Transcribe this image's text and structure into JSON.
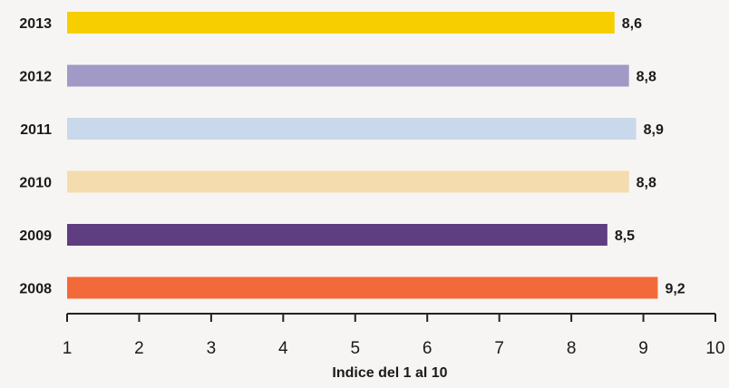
{
  "chart_data": {
    "type": "bar",
    "orientation": "horizontal",
    "categories": [
      "2013",
      "2012",
      "2011",
      "2010",
      "2009",
      "2008"
    ],
    "values": [
      8.6,
      8.8,
      8.9,
      8.8,
      8.5,
      9.2
    ],
    "value_labels": [
      "8,6",
      "8,8",
      "8,9",
      "8,8",
      "8,5",
      "9,2"
    ],
    "colors": [
      "#f7cf00",
      "#a19ac7",
      "#c9d8ea",
      "#f5dcae",
      "#5e3d80",
      "#f26a3a"
    ],
    "xlabel": "Indice del 1 al 10",
    "ylabel": "",
    "xlim": [
      1,
      10
    ],
    "x_ticks": [
      "1",
      "2",
      "3",
      "4",
      "5",
      "6",
      "7",
      "8",
      "9",
      "10"
    ],
    "grid": false,
    "legend": "none"
  }
}
